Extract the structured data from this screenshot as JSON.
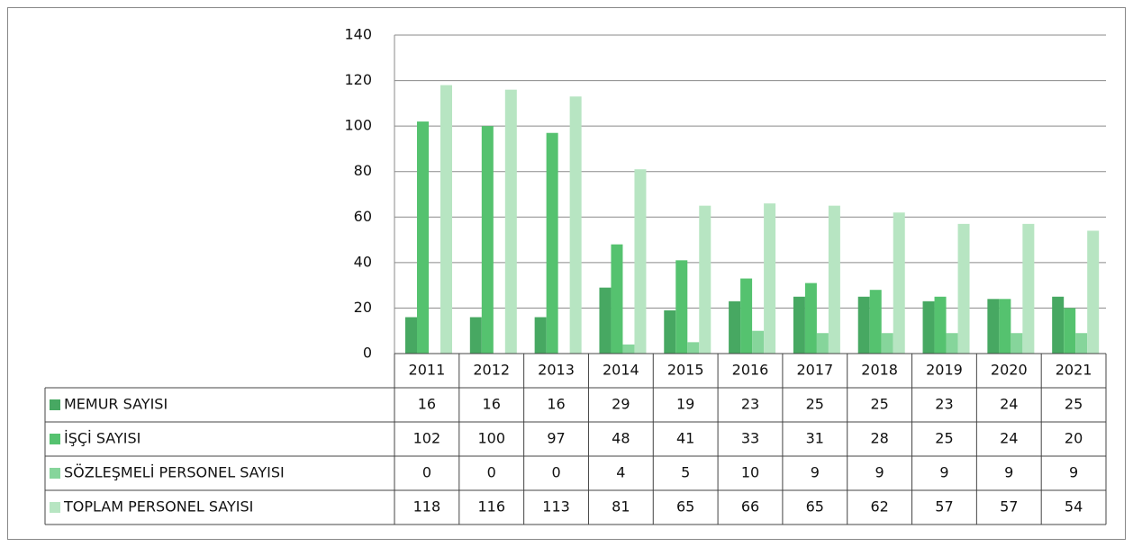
{
  "chart_data": {
    "type": "bar",
    "categories": [
      "2011",
      "2012",
      "2013",
      "2014",
      "2015",
      "2016",
      "2017",
      "2018",
      "2019",
      "2020",
      "2021"
    ],
    "series": [
      {
        "name": "MEMUR SAYISI",
        "color": "#47a862",
        "values": [
          16,
          16,
          16,
          29,
          19,
          23,
          25,
          25,
          23,
          24,
          25
        ]
      },
      {
        "name": "İŞÇİ SAYISI",
        "color": "#55c26f",
        "values": [
          102,
          100,
          97,
          48,
          41,
          33,
          31,
          28,
          25,
          24,
          20
        ]
      },
      {
        "name": "SÖZLEŞMELİ PERSONEL SAYISI",
        "color": "#86d59b",
        "values": [
          0,
          0,
          0,
          4,
          5,
          10,
          9,
          9,
          9,
          9,
          9
        ]
      },
      {
        "name": "TOPLAM PERSONEL SAYISI",
        "color": "#b7e5c2",
        "values": [
          118,
          116,
          113,
          81,
          65,
          66,
          65,
          62,
          57,
          57,
          54
        ]
      }
    ],
    "ylim": [
      0,
      140
    ],
    "yticks": [
      0,
      20,
      40,
      60,
      80,
      100,
      120,
      140
    ],
    "grid": true
  }
}
